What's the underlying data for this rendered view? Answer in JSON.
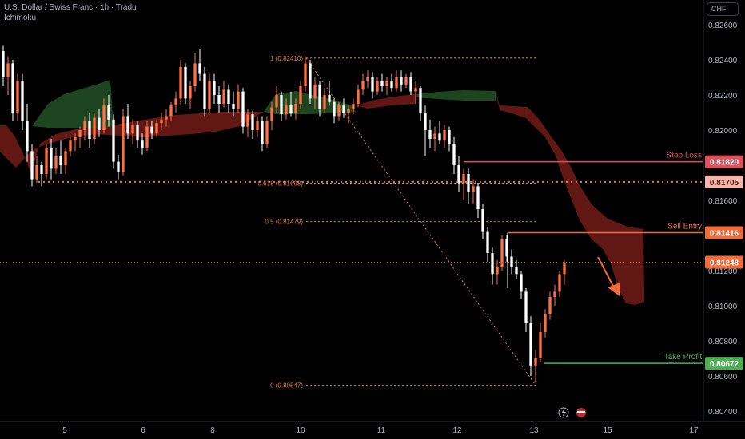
{
  "header": {
    "symbol_line": "U.S. Dollar / Swiss Franc · 1h · Tradu",
    "indicator": "Ichimoku"
  },
  "currency_badge": "CHF",
  "colors": {
    "candle_up": "#ff7043",
    "candle_down": "#ffffff",
    "cloud_bull": "#1f4a22",
    "cloud_bear": "#6b1a16",
    "fib": "#e8783a",
    "stop_loss": "#e04f5a",
    "sell_entry": "#f26b3a",
    "take_profit": "#4caf50",
    "current_price": "#f26b3a",
    "grid_text": "#b2b5be"
  },
  "chart_data": {
    "type": "candlestick",
    "symbol": "U.S. Dollar / Swiss Franc",
    "timeframe": "1h",
    "indicator": "Ichimoku",
    "x_ticks": [
      "5",
      "6",
      "8",
      "10",
      "11",
      "12",
      "13",
      "15",
      "17"
    ],
    "y_ticks": [
      "0.82600",
      "0.82400",
      "0.82200",
      "0.82000",
      "0.81600",
      "0.81200",
      "0.81000",
      "0.80800",
      "0.80600",
      "0.80400"
    ],
    "fib_levels": [
      {
        "label": "1 (0.82410)",
        "price": 0.8241
      },
      {
        "label": "0.618 (0.81698)",
        "price": 0.81698
      },
      {
        "label": "0.5 (0.81479)",
        "price": 0.81479
      },
      {
        "label": "0 (0.80547)",
        "price": 0.80547
      }
    ],
    "levels": [
      {
        "name": "Stop Loss",
        "price": 0.8182,
        "price_label": "0.81820"
      },
      {
        "name": "Sell Entry",
        "price": 0.81416,
        "price_label": "0.81416"
      },
      {
        "name": "Take Profit",
        "price": 0.80672,
        "price_label": "0.80672"
      }
    ],
    "support_line": {
      "price": 0.81705,
      "price_label": "0.81705"
    },
    "current_price": {
      "price": 0.81248,
      "price_label": "0.81248"
    },
    "candles": [
      [
        0.8245,
        0.8248,
        0.8225,
        0.823
      ],
      [
        0.823,
        0.8242,
        0.822,
        0.8238
      ],
      [
        0.8238,
        0.824,
        0.8205,
        0.821
      ],
      [
        0.821,
        0.8232,
        0.8205,
        0.8228
      ],
      [
        0.8228,
        0.8232,
        0.82,
        0.8205
      ],
      [
        0.8205,
        0.8215,
        0.8182,
        0.8188
      ],
      [
        0.8188,
        0.8192,
        0.8168,
        0.8172
      ],
      [
        0.8172,
        0.8185,
        0.817,
        0.818
      ],
      [
        0.818,
        0.8182,
        0.8168,
        0.8175
      ],
      [
        0.8175,
        0.8192,
        0.8172,
        0.819
      ],
      [
        0.819,
        0.8195,
        0.8172,
        0.8178
      ],
      [
        0.8178,
        0.819,
        0.8175,
        0.8185
      ],
      [
        0.8185,
        0.8194,
        0.8175,
        0.818
      ],
      [
        0.818,
        0.819,
        0.8175,
        0.8188
      ],
      [
        0.8188,
        0.8196,
        0.8185,
        0.8194
      ],
      [
        0.8194,
        0.8198,
        0.8188,
        0.8196
      ],
      [
        0.8196,
        0.8202,
        0.819,
        0.82
      ],
      [
        0.82,
        0.8208,
        0.8194,
        0.8205
      ],
      [
        0.8205,
        0.821,
        0.819,
        0.8195
      ],
      [
        0.8195,
        0.821,
        0.8192,
        0.8207
      ],
      [
        0.8207,
        0.8212,
        0.8196,
        0.82
      ],
      [
        0.82,
        0.8218,
        0.8198,
        0.8214
      ],
      [
        0.8214,
        0.822,
        0.8202,
        0.8206
      ],
      [
        0.8206,
        0.8209,
        0.8178,
        0.8182
      ],
      [
        0.8182,
        0.8186,
        0.8172,
        0.8176
      ],
      [
        0.8176,
        0.8212,
        0.8174,
        0.8208
      ],
      [
        0.8208,
        0.8215,
        0.8195,
        0.8198
      ],
      [
        0.8198,
        0.8206,
        0.8192,
        0.8203
      ],
      [
        0.8203,
        0.8205,
        0.819,
        0.8194
      ],
      [
        0.8194,
        0.8198,
        0.8186,
        0.819
      ],
      [
        0.819,
        0.8205,
        0.8188,
        0.8202
      ],
      [
        0.8202,
        0.8205,
        0.8195,
        0.8198
      ],
      [
        0.8198,
        0.8206,
        0.8196,
        0.8204
      ],
      [
        0.8204,
        0.821,
        0.82,
        0.8206
      ],
      [
        0.8206,
        0.8212,
        0.8202,
        0.8208
      ],
      [
        0.8208,
        0.8216,
        0.8205,
        0.8214
      ],
      [
        0.8214,
        0.8222,
        0.821,
        0.8218
      ],
      [
        0.8218,
        0.824,
        0.8214,
        0.8236
      ],
      [
        0.8236,
        0.8238,
        0.8215,
        0.8218
      ],
      [
        0.8218,
        0.8228,
        0.8212,
        0.8225
      ],
      [
        0.8225,
        0.8244,
        0.8222,
        0.8238
      ],
      [
        0.8238,
        0.8246,
        0.8228,
        0.8232
      ],
      [
        0.8232,
        0.8236,
        0.8208,
        0.8212
      ],
      [
        0.8212,
        0.8232,
        0.821,
        0.8228
      ],
      [
        0.8228,
        0.8232,
        0.8215,
        0.822
      ],
      [
        0.822,
        0.8225,
        0.821,
        0.8215
      ],
      [
        0.8215,
        0.8228,
        0.8213,
        0.8223
      ],
      [
        0.8223,
        0.8226,
        0.821,
        0.8215
      ],
      [
        0.8215,
        0.8222,
        0.8208,
        0.8212
      ],
      [
        0.8212,
        0.8226,
        0.821,
        0.8222
      ],
      [
        0.8222,
        0.8224,
        0.8198,
        0.8202
      ],
      [
        0.8202,
        0.8212,
        0.8196,
        0.8209
      ],
      [
        0.8209,
        0.8211,
        0.8195,
        0.82
      ],
      [
        0.82,
        0.8208,
        0.8196,
        0.8205
      ],
      [
        0.8205,
        0.8208,
        0.8188,
        0.8192
      ],
      [
        0.8192,
        0.8208,
        0.819,
        0.8205
      ],
      [
        0.8205,
        0.8216,
        0.82,
        0.8213
      ],
      [
        0.8213,
        0.8225,
        0.821,
        0.822
      ],
      [
        0.822,
        0.8222,
        0.8205,
        0.8209
      ],
      [
        0.8209,
        0.8218,
        0.8206,
        0.8214
      ],
      [
        0.8214,
        0.8222,
        0.8208,
        0.821
      ],
      [
        0.821,
        0.8218,
        0.8206,
        0.8215
      ],
      [
        0.8215,
        0.8228,
        0.8212,
        0.8225
      ],
      [
        0.8225,
        0.8242,
        0.8222,
        0.8238
      ],
      [
        0.8238,
        0.824,
        0.8215,
        0.8218
      ],
      [
        0.8218,
        0.823,
        0.8212,
        0.8226
      ],
      [
        0.8226,
        0.8228,
        0.8208,
        0.8212
      ],
      [
        0.8212,
        0.8224,
        0.821,
        0.822
      ],
      [
        0.822,
        0.8228,
        0.8214,
        0.8216
      ],
      [
        0.8216,
        0.8218,
        0.8204,
        0.8208
      ],
      [
        0.8208,
        0.8216,
        0.8205,
        0.8214
      ],
      [
        0.8214,
        0.8218,
        0.8207,
        0.821
      ],
      [
        0.821,
        0.8214,
        0.8204,
        0.8212
      ],
      [
        0.8212,
        0.8218,
        0.8209,
        0.8215
      ],
      [
        0.8215,
        0.8226,
        0.8213,
        0.8223
      ],
      [
        0.8223,
        0.8232,
        0.822,
        0.8228
      ],
      [
        0.8228,
        0.8234,
        0.8224,
        0.823
      ],
      [
        0.823,
        0.8233,
        0.8218,
        0.8222
      ],
      [
        0.8222,
        0.823,
        0.822,
        0.8228
      ],
      [
        0.8228,
        0.8232,
        0.8222,
        0.8225
      ],
      [
        0.8225,
        0.823,
        0.822,
        0.8228
      ],
      [
        0.8228,
        0.8232,
        0.8222,
        0.8224
      ],
      [
        0.8224,
        0.8234,
        0.8222,
        0.823
      ],
      [
        0.823,
        0.8234,
        0.8222,
        0.8226
      ],
      [
        0.8226,
        0.8232,
        0.8224,
        0.823
      ],
      [
        0.823,
        0.8233,
        0.822,
        0.8222
      ],
      [
        0.8222,
        0.8228,
        0.8215,
        0.8224
      ],
      [
        0.8224,
        0.8225,
        0.8205,
        0.821
      ],
      [
        0.821,
        0.8214,
        0.8185,
        0.82
      ],
      [
        0.82,
        0.8206,
        0.819,
        0.8195
      ],
      [
        0.8195,
        0.8202,
        0.8188,
        0.8198
      ],
      [
        0.8198,
        0.8205,
        0.8192,
        0.8194
      ],
      [
        0.8194,
        0.8203,
        0.819,
        0.82
      ],
      [
        0.82,
        0.8202,
        0.8188,
        0.8192
      ],
      [
        0.8192,
        0.8196,
        0.8175,
        0.818
      ],
      [
        0.818,
        0.8185,
        0.8165,
        0.817
      ],
      [
        0.817,
        0.8178,
        0.816,
        0.8175
      ],
      [
        0.8175,
        0.8178,
        0.8158,
        0.8165
      ],
      [
        0.8165,
        0.8172,
        0.8158,
        0.8168
      ],
      [
        0.8168,
        0.817,
        0.815,
        0.8155
      ],
      [
        0.8155,
        0.8158,
        0.8138,
        0.8142
      ],
      [
        0.8142,
        0.8145,
        0.8125,
        0.813
      ],
      [
        0.813,
        0.8133,
        0.8112,
        0.8118
      ],
      [
        0.8118,
        0.8126,
        0.8112,
        0.8122
      ],
      [
        0.8122,
        0.814,
        0.812,
        0.8138
      ],
      [
        0.8138,
        0.814,
        0.8125,
        0.8128
      ],
      [
        0.8128,
        0.8132,
        0.8118,
        0.8122
      ],
      [
        0.8122,
        0.8126,
        0.8115,
        0.8118
      ],
      [
        0.8118,
        0.812,
        0.8104,
        0.8108
      ],
      [
        0.8108,
        0.811,
        0.8085,
        0.809
      ],
      [
        0.809,
        0.8094,
        0.806,
        0.8066
      ],
      [
        0.8066,
        0.8075,
        0.8056,
        0.807
      ],
      [
        0.807,
        0.809,
        0.8068,
        0.8085
      ],
      [
        0.8085,
        0.8098,
        0.8082,
        0.8095
      ],
      [
        0.8095,
        0.8108,
        0.8092,
        0.8105
      ],
      [
        0.8105,
        0.8112,
        0.81,
        0.8108
      ],
      [
        0.8108,
        0.812,
        0.8105,
        0.8118
      ],
      [
        0.8118,
        0.8126,
        0.8112,
        0.8124
      ]
    ]
  }
}
